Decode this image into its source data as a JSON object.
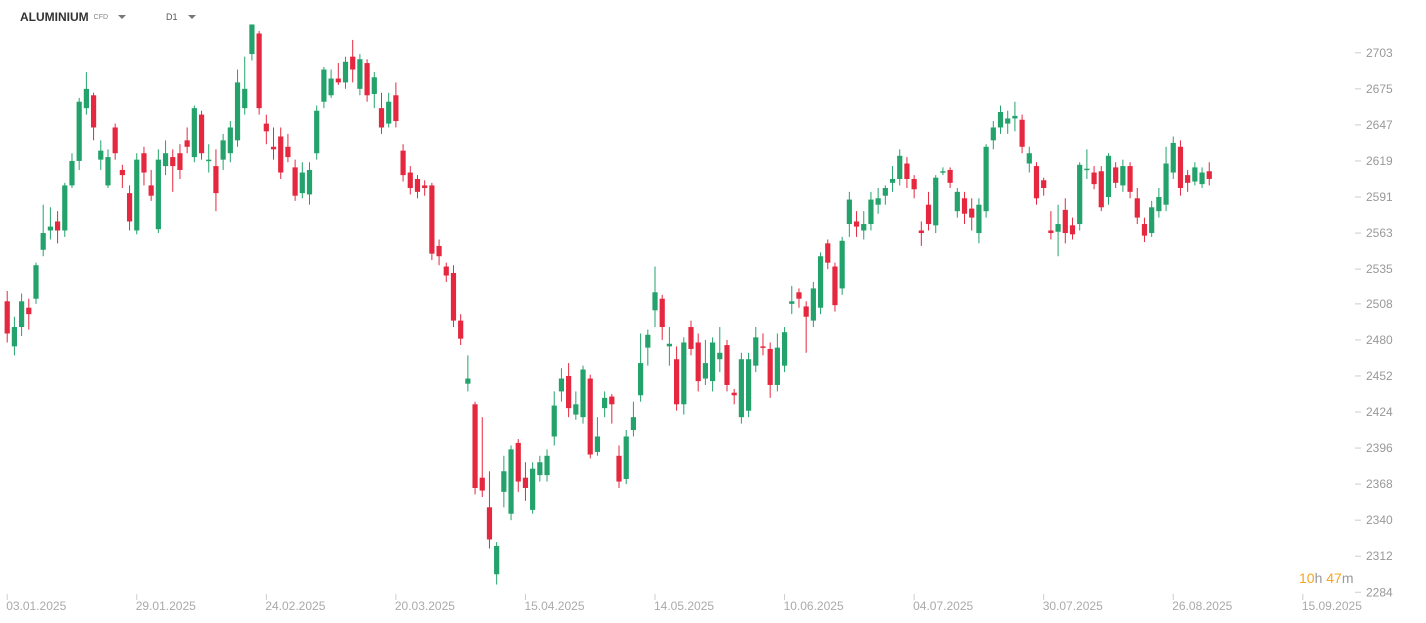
{
  "header": {
    "symbol": "ALUMINIUM",
    "symbol_type": "CFD",
    "timeframe": "D1"
  },
  "countdown": [
    "10",
    "h",
    "47",
    "m"
  ],
  "chart_data": {
    "type": "candlestick",
    "up_color": "#23a36b",
    "down_color": "#e5283f",
    "xlim": [
      -1,
      188.5
    ],
    "xticks": [
      {
        "value": 0,
        "label": "03.01.2025"
      },
      {
        "value": 18,
        "label": "29.01.2025"
      },
      {
        "value": 36,
        "label": "24.02.2025"
      },
      {
        "value": 54,
        "label": "20.03.2025"
      },
      {
        "value": 72,
        "label": "15.04.2025"
      },
      {
        "value": 90,
        "label": "14.05.2025"
      },
      {
        "value": 108,
        "label": "10.06.2025"
      },
      {
        "value": 126,
        "label": "04.07.2025"
      },
      {
        "value": 144,
        "label": "30.07.2025"
      },
      {
        "value": 162,
        "label": "26.08.2025"
      },
      {
        "value": 180,
        "label": "15.09.2025"
      }
    ],
    "ylim": [
      2278,
      2744
    ],
    "yticks": [
      2284,
      2312,
      2340,
      2368,
      2396,
      2424,
      2452,
      2480,
      2508,
      2535,
      2563,
      2591,
      2619,
      2647,
      2675,
      2703
    ],
    "open": [
      2510,
      2475,
      2490,
      2505,
      2512,
      2550,
      2565,
      2572,
      2565,
      2600,
      2619,
      2660,
      2670,
      2620,
      2600,
      2645,
      2612,
      2594,
      2565,
      2625,
      2600,
      2566,
      2615,
      2622,
      2625,
      2635,
      2622,
      2655,
      2620,
      2615,
      2620,
      2625,
      2635,
      2660,
      2702,
      2718,
      2648,
      2630,
      2638,
      2630,
      2614,
      2594,
      2593,
      2625,
      2665,
      2670,
      2683,
      2680,
      2700,
      2675,
      2695,
      2671,
      2660,
      2648,
      2670,
      2627,
      2610,
      2605,
      2600,
      2600,
      2553,
      2537,
      2532,
      2495,
      2446,
      2430,
      2373,
      2350,
      2298,
      2362,
      2345,
      2400,
      2373,
      2348,
      2375,
      2375,
      2405,
      2440,
      2452,
      2422,
      2420,
      2450,
      2393,
      2427,
      2436,
      2390,
      2372,
      2410,
      2437,
      2474,
      2503,
      2512,
      2475,
      2465,
      2430,
      2490,
      2478,
      2450,
      2448,
      2465,
      2476,
      2439,
      2420,
      2425,
      2460,
      2475,
      2473,
      2445,
      2460,
      2508,
      2517,
      2506,
      2495,
      2505,
      2555,
      2537,
      2520,
      2570,
      2572,
      2565,
      2570,
      2585,
      2592,
      2602,
      2605,
      2617,
      2605,
      2565,
      2585,
      2569,
      2611,
      2612,
      2580,
      2590,
      2582,
      2563,
      2580,
      2635,
      2645,
      2648,
      2652,
      2651,
      2617,
      2615,
      2604,
      2565,
      2564,
      2581,
      2569,
      2570,
      2612,
      2610,
      2611,
      2591,
      2614,
      2600,
      2615,
      2590,
      2570,
      2563,
      2580,
      2585,
      2610,
      2630,
      2608,
      2603,
      2601,
      2611
    ],
    "high": [
      2518,
      2498,
      2516,
      2512,
      2540,
      2585,
      2583,
      2580,
      2602,
      2625,
      2668,
      2688,
      2672,
      2635,
      2628,
      2648,
      2616,
      2600,
      2625,
      2630,
      2612,
      2628,
      2635,
      2628,
      2632,
      2645,
      2662,
      2658,
      2632,
      2628,
      2640,
      2650,
      2690,
      2700,
      2725,
      2720,
      2655,
      2645,
      2645,
      2640,
      2620,
      2618,
      2618,
      2662,
      2692,
      2690,
      2695,
      2700,
      2713,
      2702,
      2698,
      2688,
      2672,
      2672,
      2680,
      2632,
      2615,
      2608,
      2604,
      2602,
      2558,
      2540,
      2538,
      2500,
      2468,
      2432,
      2420,
      2378,
      2323,
      2390,
      2398,
      2403,
      2385,
      2385,
      2390,
      2395,
      2440,
      2458,
      2462,
      2440,
      2460,
      2453,
      2420,
      2440,
      2438,
      2398,
      2410,
      2432,
      2485,
      2488,
      2537,
      2515,
      2490,
      2475,
      2482,
      2495,
      2485,
      2480,
      2482,
      2490,
      2480,
      2442,
      2470,
      2470,
      2490,
      2485,
      2478,
      2485,
      2490,
      2522,
      2520,
      2510,
      2525,
      2548,
      2558,
      2540,
      2560,
      2595,
      2580,
      2580,
      2595,
      2598,
      2600,
      2615,
      2628,
      2622,
      2608,
      2572,
      2595,
      2608,
      2614,
      2614,
      2598,
      2595,
      2590,
      2590,
      2632,
      2650,
      2662,
      2658,
      2665,
      2655,
      2630,
      2618,
      2606,
      2580,
      2585,
      2590,
      2575,
      2618,
      2628,
      2615,
      2615,
      2625,
      2618,
      2620,
      2618,
      2598,
      2575,
      2588,
      2598,
      2630,
      2638,
      2635,
      2612,
      2618,
      2614,
      2618
    ],
    "low": [
      2478,
      2468,
      2483,
      2488,
      2508,
      2545,
      2558,
      2555,
      2560,
      2598,
      2612,
      2655,
      2635,
      2612,
      2598,
      2620,
      2598,
      2565,
      2562,
      2600,
      2588,
      2563,
      2608,
      2595,
      2605,
      2625,
      2618,
      2620,
      2610,
      2580,
      2612,
      2618,
      2630,
      2655,
      2697,
      2655,
      2632,
      2620,
      2605,
      2618,
      2588,
      2590,
      2585,
      2620,
      2660,
      2668,
      2678,
      2675,
      2680,
      2670,
      2665,
      2660,
      2640,
      2645,
      2645,
      2603,
      2593,
      2590,
      2592,
      2542,
      2538,
      2525,
      2490,
      2476,
      2440,
      2360,
      2358,
      2318,
      2290,
      2350,
      2340,
      2362,
      2355,
      2345,
      2370,
      2370,
      2398,
      2432,
      2420,
      2418,
      2415,
      2388,
      2390,
      2420,
      2415,
      2365,
      2368,
      2405,
      2432,
      2460,
      2490,
      2480,
      2460,
      2425,
      2422,
      2468,
      2440,
      2445,
      2440,
      2455,
      2440,
      2430,
      2415,
      2420,
      2455,
      2468,
      2435,
      2440,
      2455,
      2500,
      2505,
      2470,
      2490,
      2500,
      2535,
      2502,
      2515,
      2560,
      2560,
      2558,
      2565,
      2578,
      2585,
      2595,
      2600,
      2598,
      2590,
      2553,
      2565,
      2563,
      2608,
      2598,
      2575,
      2570,
      2565,
      2555,
      2575,
      2628,
      2640,
      2640,
      2642,
      2625,
      2610,
      2585,
      2592,
      2558,
      2545,
      2555,
      2558,
      2565,
      2605,
      2597,
      2580,
      2585,
      2598,
      2595,
      2590,
      2570,
      2556,
      2560,
      2575,
      2580,
      2605,
      2592,
      2595,
      2600,
      2598,
      2600
    ],
    "close": [
      2485,
      2490,
      2510,
      2500,
      2538,
      2563,
      2568,
      2565,
      2600,
      2619,
      2665,
      2675,
      2645,
      2627,
      2622,
      2625,
      2608,
      2572,
      2620,
      2610,
      2592,
      2620,
      2625,
      2615,
      2612,
      2630,
      2660,
      2625,
      2620,
      2594,
      2635,
      2645,
      2680,
      2675,
      2725,
      2660,
      2642,
      2628,
      2610,
      2622,
      2592,
      2610,
      2612,
      2658,
      2690,
      2683,
      2680,
      2696,
      2690,
      2698,
      2670,
      2684,
      2645,
      2665,
      2650,
      2608,
      2598,
      2595,
      2598,
      2547,
      2545,
      2530,
      2495,
      2481,
      2450,
      2365,
      2363,
      2325,
      2320,
      2378,
      2395,
      2370,
      2365,
      2380,
      2385,
      2390,
      2429,
      2450,
      2427,
      2430,
      2457,
      2391,
      2405,
      2435,
      2430,
      2370,
      2405,
      2420,
      2462,
      2484,
      2517,
      2490,
      2477,
      2430,
      2478,
      2473,
      2448,
      2462,
      2478,
      2470,
      2445,
      2437,
      2465,
      2465,
      2482,
      2474,
      2445,
      2474,
      2486,
      2510,
      2512,
      2498,
      2520,
      2545,
      2540,
      2507,
      2557,
      2589,
      2568,
      2570,
      2589,
      2590,
      2598,
      2605,
      2623,
      2605,
      2597,
      2563,
      2570,
      2606,
      2611,
      2602,
      2595,
      2578,
      2575,
      2585,
      2630,
      2645,
      2657,
      2652,
      2654,
      2630,
      2625,
      2590,
      2598,
      2563,
      2570,
      2563,
      2562,
      2616,
      2613,
      2601,
      2583,
      2623,
      2602,
      2615,
      2595,
      2575,
      2561,
      2583,
      2591,
      2617,
      2633,
      2598,
      2602,
      2614,
      2610,
      2605
    ]
  }
}
